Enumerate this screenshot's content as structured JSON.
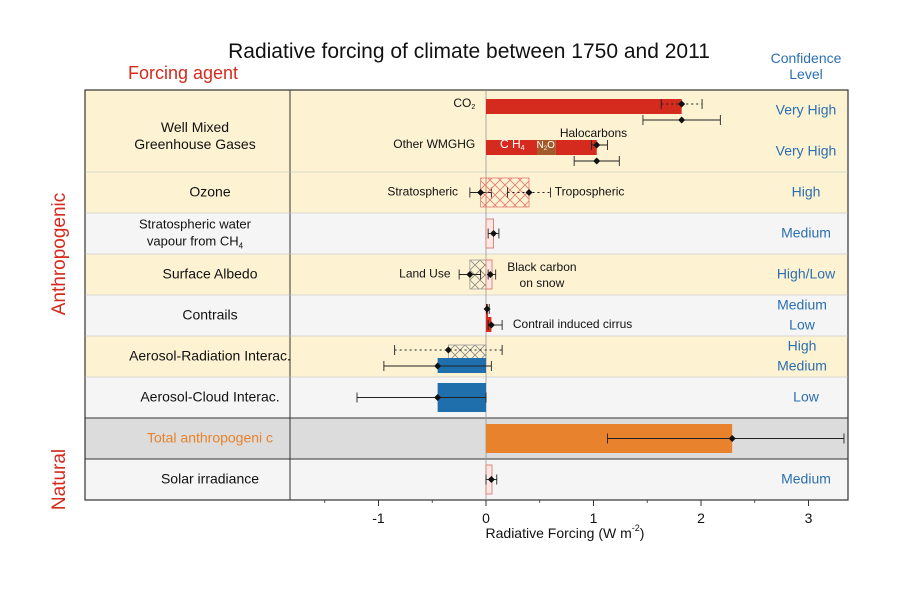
{
  "chart_data": {
    "type": "bar",
    "orientation": "horizontal",
    "title": "Radiative forcing of climate between 1750 and 2011",
    "left_header": "Forcing agent",
    "right_header": [
      "Confidence",
      "Level"
    ],
    "xlabel": "Radiative Forcing (W m",
    "xlabel_sup": "-2",
    "xlabel_close": ")",
    "xlim": [
      -1.85,
      3.4
    ],
    "xticks": [
      -1,
      0,
      1,
      2,
      3
    ],
    "group_labels": {
      "anthropogenic": "Anthropogenic",
      "natural": "Natural"
    },
    "colors": {
      "band_yellow": "#fdf3d3",
      "band_gray": "#f5f5f5",
      "band_total": "#dcdcdc",
      "red": "#d42b1e",
      "brown": "#a35a2a",
      "blue": "#1f6fad",
      "orange": "#e8822c",
      "title_red": "#d42b1e",
      "confidence_blue": "#2b6fb0",
      "total_label": "#e8822c"
    },
    "rows": [
      {
        "label": [
          "Well Mixed",
          "Greenhouse Gases"
        ],
        "band": "yellow",
        "confidence": [
          "Very High"
        ]
      },
      {
        "label": [],
        "band": "yellow",
        "confidence": [
          "Very High"
        ]
      },
      {
        "label": [
          "Ozone"
        ],
        "band": "yellow",
        "confidence": [
          "High"
        ]
      },
      {
        "label": [
          "Stratospheric water",
          "vapour from CH"
        ],
        "label_sub": "4",
        "band": "gray",
        "confidence": [
          "Medium"
        ]
      },
      {
        "label": [
          "Surface Albedo"
        ],
        "band": "yellow",
        "confidence": [
          "High/Low"
        ]
      },
      {
        "label": [
          "Contrails"
        ],
        "band": "gray",
        "confidence": [
          "Medium",
          "Low"
        ]
      },
      {
        "label": [
          "Aerosol-Radiation Interac."
        ],
        "band": "yellow",
        "confidence": [
          "High",
          "Medium"
        ]
      },
      {
        "label": [
          "Aerosol-Cloud Interac."
        ],
        "band": "gray",
        "confidence": [
          "Low"
        ]
      },
      {
        "label": [
          "Total anthropogeni c"
        ],
        "band": "total",
        "confidence": []
      },
      {
        "label": [
          "Solar irradiance"
        ],
        "band": "gray",
        "confidence": [
          "Medium"
        ]
      }
    ],
    "bars": [
      {
        "row": 0,
        "sub": "upper",
        "start": 0,
        "end": 1.82,
        "color": "red",
        "style": "solid",
        "value": 1.82,
        "err_lo": 1.63,
        "err_hi": 2.01,
        "dotted": true
      },
      {
        "row": 0,
        "sub": "lower",
        "start": 0,
        "end": 1.82,
        "color": "red",
        "style": "none",
        "value": 1.82,
        "err_lo": 1.46,
        "err_hi": 2.18,
        "dotted": false
      },
      {
        "row": 1,
        "sub": "upper",
        "start": 0,
        "end": 0.48,
        "color": "red",
        "style": "solid",
        "value": null,
        "err_lo": null,
        "err_hi": null,
        "dotted": false
      },
      {
        "row": 1,
        "sub": "upper",
        "start": 0.48,
        "end": 0.65,
        "color": "brown",
        "style": "solid",
        "value": null,
        "err_lo": null,
        "err_hi": null,
        "dotted": false
      },
      {
        "row": 1,
        "sub": "upper",
        "start": 0.65,
        "end": 1.03,
        "color": "red",
        "style": "solid",
        "value": 1.03,
        "err_lo": 0.98,
        "err_hi": 1.13,
        "dotted": false
      },
      {
        "row": 1,
        "sub": "lower",
        "start": 0,
        "end": 1.03,
        "color": "red",
        "style": "none",
        "value": 1.03,
        "err_lo": 0.82,
        "err_hi": 1.24,
        "dotted": false
      },
      {
        "row": 2,
        "sub": "center",
        "start": -0.05,
        "end": 0,
        "color": "red",
        "style": "hatch",
        "value": -0.05,
        "err_lo": -0.15,
        "err_hi": 0.05,
        "dotted": false
      },
      {
        "row": 2,
        "sub": "center",
        "start": 0,
        "end": 0.4,
        "color": "red",
        "style": "hatch",
        "value": 0.4,
        "err_lo": 0.2,
        "err_hi": 0.6,
        "dotted": true
      },
      {
        "row": 3,
        "sub": "center",
        "start": 0,
        "end": 0.07,
        "color": "red",
        "style": "outline",
        "value": 0.07,
        "err_lo": 0.02,
        "err_hi": 0.12,
        "dotted": false
      },
      {
        "row": 4,
        "sub": "center",
        "start": -0.15,
        "end": 0,
        "color": "gray",
        "style": "hatch",
        "value": -0.15,
        "err_lo": -0.25,
        "err_hi": -0.05,
        "dotted": false
      },
      {
        "row": 4,
        "sub": "center",
        "start": 0,
        "end": 0.04,
        "color": "red",
        "style": "outline",
        "value": 0.04,
        "err_lo": 0.02,
        "err_hi": 0.09,
        "dotted": false
      },
      {
        "row": 5,
        "sub": "upper",
        "start": 0,
        "end": 0.01,
        "color": "red",
        "style": "solid",
        "value": 0.01,
        "err_lo": 0.005,
        "err_hi": 0.03,
        "dotted": false
      },
      {
        "row": 5,
        "sub": "lower",
        "start": 0,
        "end": 0.05,
        "color": "red",
        "style": "solid",
        "value": 0.05,
        "err_lo": 0.02,
        "err_hi": 0.15,
        "dotted": false
      },
      {
        "row": 6,
        "sub": "upper",
        "start": -0.35,
        "end": 0,
        "color": "gray",
        "style": "hatch",
        "value": -0.35,
        "err_lo": -0.85,
        "err_hi": 0.15,
        "dotted": true
      },
      {
        "row": 6,
        "sub": "lower",
        "start": -0.45,
        "end": 0,
        "color": "blue",
        "style": "solid",
        "value": -0.45,
        "err_lo": -0.95,
        "err_hi": 0.05,
        "dotted": false
      },
      {
        "row": 7,
        "sub": "center",
        "start": -0.45,
        "end": 0,
        "color": "blue",
        "style": "solid",
        "value": -0.45,
        "err_lo": -1.2,
        "err_hi": 0.0,
        "dotted": false
      },
      {
        "row": 8,
        "sub": "center",
        "start": 0,
        "end": 2.29,
        "color": "orange",
        "style": "solid",
        "value": 2.29,
        "err_lo": 1.13,
        "err_hi": 3.33,
        "dotted": false
      },
      {
        "row": 9,
        "sub": "center",
        "start": 0,
        "end": 0.05,
        "color": "red",
        "style": "outline",
        "value": 0.05,
        "err_lo": 0.0,
        "err_hi": 0.1,
        "dotted": false
      }
    ],
    "annotations": [
      {
        "row": 0,
        "sub": "upper",
        "x": -0.1,
        "anchor": "end",
        "text": "CO",
        "sub_text": "2"
      },
      {
        "row": 1,
        "sub": "upper",
        "x": -0.1,
        "anchor": "end",
        "text": "Other WMGHG"
      },
      {
        "row": 1,
        "sub": "above",
        "x": 1.0,
        "anchor": "middle",
        "text": "Halocarbons"
      },
      {
        "row": 1,
        "sub": "upper",
        "x": 0.13,
        "anchor": "start",
        "text": "C H",
        "sub_text": "4",
        "color": "#ffffff"
      },
      {
        "row": 1,
        "sub": "upper",
        "x": 0.47,
        "anchor": "start",
        "text": "N",
        "sub_text": "2",
        "tail": "O",
        "color": "#ffffff",
        "small": true
      },
      {
        "row": 2,
        "sub": "center",
        "x": -0.26,
        "anchor": "end",
        "text": "Stratospheric"
      },
      {
        "row": 2,
        "sub": "center",
        "x": 0.64,
        "anchor": "start",
        "text": "Tropospheric"
      },
      {
        "row": 4,
        "sub": "center",
        "x": -0.33,
        "anchor": "end",
        "text": "Land Use"
      },
      {
        "row": 4,
        "sub": "upper",
        "x": 0.52,
        "anchor": "middle",
        "text": "Black carbon"
      },
      {
        "row": 4,
        "sub": "lower",
        "x": 0.52,
        "anchor": "middle",
        "text": "on snow"
      },
      {
        "row": 5,
        "sub": "lower",
        "x": 0.25,
        "anchor": "start",
        "text": "Contrail induced cirrus"
      }
    ]
  }
}
